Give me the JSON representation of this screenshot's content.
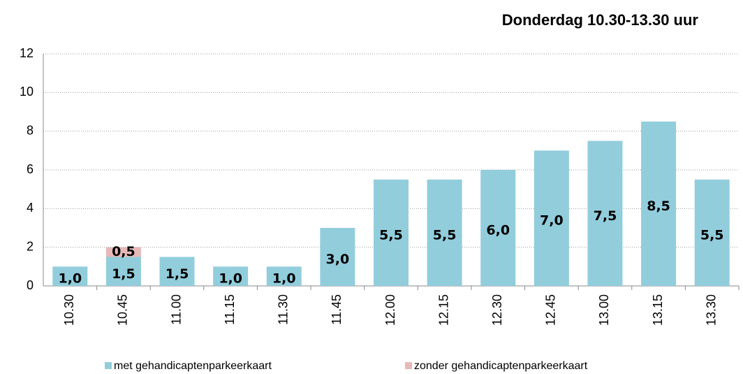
{
  "chart_data": {
    "type": "stacked_bar",
    "title": "Donderdag 10.30-13.30 uur",
    "categories": [
      "10.30",
      "10.45",
      "11.00",
      "11.15",
      "11.30",
      "11.45",
      "12.00",
      "12.15",
      "12.30",
      "12.45",
      "13.00",
      "13.15",
      "13.30"
    ],
    "series": [
      {
        "name": "met gehandicaptenparkeerkaart",
        "color": "#92cddc",
        "values": [
          1.0,
          1.5,
          1.5,
          1.0,
          1.0,
          3.0,
          5.5,
          5.5,
          6.0,
          7.0,
          7.5,
          8.5,
          5.5
        ],
        "value_labels": [
          "1,0",
          "1,5",
          "1,5",
          "1,0",
          "1,0",
          "3,0",
          "5,5",
          "5,5",
          "6,0",
          "7,0",
          "7,5",
          "8,5",
          "5,5"
        ]
      },
      {
        "name": "zonder gehandicaptenparkeerkaart",
        "color": "#e6b9b8",
        "values": [
          0,
          0.5,
          0,
          0,
          0,
          0,
          0,
          0,
          0,
          0,
          0,
          0,
          0
        ],
        "value_labels": [
          null,
          "0,5",
          null,
          null,
          null,
          null,
          null,
          null,
          null,
          null,
          null,
          null,
          null
        ]
      }
    ],
    "ylim": [
      0,
      12
    ],
    "yticks": [
      0,
      2,
      4,
      6,
      8,
      10,
      12
    ],
    "grid": true,
    "legend": "bottom"
  }
}
